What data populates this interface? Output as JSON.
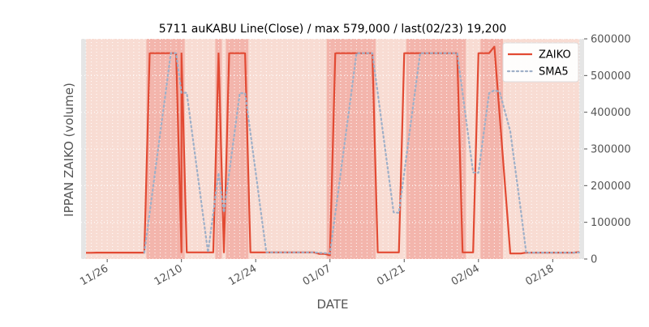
{
  "chart_data": {
    "type": "line",
    "title": "5711 auKABU Line(Close) / max 579,000 / last(02/23) 19,200",
    "xlabel": "DATE",
    "ylabel": "IPPAN ZAIKO (volume)",
    "y_ticks": [
      0,
      100000,
      200000,
      300000,
      400000,
      500000,
      600000
    ],
    "y_tick_labels": [
      "0",
      "100000",
      "200000",
      "300000",
      "400000",
      "500000",
      "600000"
    ],
    "ylim": [
      0,
      600000
    ],
    "x_ticks": [
      "11/26",
      "12/10",
      "12/24",
      "01/07",
      "01/21",
      "02/04",
      "02/18"
    ],
    "legend_position": "top-right",
    "grid": true,
    "colors": {
      "zaiko": "#E24A33",
      "sma5": "#9FB0C8",
      "background": "#F8DCD3",
      "band": "#F2AEA5",
      "panel_edge": "#E5E5E5"
    },
    "bands": [
      [
        "12/04",
        "12/09"
      ],
      [
        "12/10",
        "12/10"
      ],
      [
        "12/17",
        "12/17"
      ],
      [
        "12/19",
        "12/22"
      ],
      [
        "01/07",
        "01/15"
      ],
      [
        "01/22",
        "02/01"
      ],
      [
        "02/05",
        "02/08"
      ]
    ],
    "series": [
      {
        "name": "ZAIKO",
        "style": "solid",
        "points": [
          [
            "11/22",
            17000
          ],
          [
            "11/23",
            17000
          ],
          [
            "11/24",
            17500
          ],
          [
            "11/25",
            17500
          ],
          [
            "11/26",
            17500
          ],
          [
            "11/27",
            17500
          ],
          [
            "11/28",
            17500
          ],
          [
            "11/29",
            17500
          ],
          [
            "11/30",
            17500
          ],
          [
            "12/01",
            17500
          ],
          [
            "12/02",
            17500
          ],
          [
            "12/03",
            17500
          ],
          [
            "12/04",
            561000
          ],
          [
            "12/05",
            561000
          ],
          [
            "12/06",
            561000
          ],
          [
            "12/07",
            561000
          ],
          [
            "12/08",
            561000
          ],
          [
            "12/09",
            561000
          ],
          [
            "12/10",
            18000
          ],
          [
            "12/10",
            561000
          ],
          [
            "12/11",
            18000
          ],
          [
            "12/12",
            18000
          ],
          [
            "12/13",
            18000
          ],
          [
            "12/14",
            18000
          ],
          [
            "12/15",
            18000
          ],
          [
            "12/16",
            18000
          ],
          [
            "12/17",
            561000
          ],
          [
            "12/18",
            18000
          ],
          [
            "12/19",
            561000
          ],
          [
            "12/20",
            561000
          ],
          [
            "12/21",
            561000
          ],
          [
            "12/22",
            561000
          ],
          [
            "12/23",
            18000
          ],
          [
            "12/24",
            18000
          ],
          [
            "12/25",
            18000
          ],
          [
            "12/26",
            18000
          ],
          [
            "12/27",
            18000
          ],
          [
            "12/28",
            18000
          ],
          [
            "12/29",
            18000
          ],
          [
            "12/30",
            18000
          ],
          [
            "12/31",
            18000
          ],
          [
            "01/01",
            18000
          ],
          [
            "01/02",
            18000
          ],
          [
            "01/03",
            18000
          ],
          [
            "01/04",
            18000
          ],
          [
            "01/05",
            14000
          ],
          [
            "01/06",
            14000
          ],
          [
            "01/07",
            10000
          ],
          [
            "01/08",
            561000
          ],
          [
            "01/09",
            561000
          ],
          [
            "01/10",
            561000
          ],
          [
            "01/11",
            561000
          ],
          [
            "01/12",
            561000
          ],
          [
            "01/13",
            561000
          ],
          [
            "01/14",
            561000
          ],
          [
            "01/15",
            561000
          ],
          [
            "01/16",
            18000
          ],
          [
            "01/17",
            18000
          ],
          [
            "01/18",
            18000
          ],
          [
            "01/19",
            18000
          ],
          [
            "01/20",
            18000
          ],
          [
            "01/21",
            561000
          ],
          [
            "01/22",
            561000
          ],
          [
            "01/23",
            561000
          ],
          [
            "01/24",
            561000
          ],
          [
            "01/25",
            561000
          ],
          [
            "01/26",
            561000
          ],
          [
            "01/27",
            561000
          ],
          [
            "01/28",
            561000
          ],
          [
            "01/29",
            561000
          ],
          [
            "01/30",
            561000
          ],
          [
            "01/31",
            561000
          ],
          [
            "02/01",
            18000
          ],
          [
            "02/02",
            18000
          ],
          [
            "02/03",
            18000
          ],
          [
            "02/04",
            561000
          ],
          [
            "02/05",
            561000
          ],
          [
            "02/06",
            561000
          ],
          [
            "02/07",
            579000
          ],
          [
            "02/10",
            15000
          ],
          [
            "02/11",
            15000
          ],
          [
            "02/12",
            15000
          ],
          [
            "02/13",
            17500
          ],
          [
            "02/14",
            17500
          ],
          [
            "02/15",
            17500
          ],
          [
            "02/16",
            17500
          ],
          [
            "02/17",
            17500
          ],
          [
            "02/18",
            17500
          ],
          [
            "02/19",
            17500
          ],
          [
            "02/20",
            17500
          ],
          [
            "02/21",
            17500
          ],
          [
            "02/22",
            17500
          ],
          [
            "02/23",
            19200
          ]
        ]
      },
      {
        "name": "SMA5",
        "style": "dotted",
        "points": [
          [
            "12/03",
            17500
          ],
          [
            "12/04",
            126000
          ],
          [
            "12/05",
            234000
          ],
          [
            "12/06",
            343000
          ],
          [
            "12/07",
            452000
          ],
          [
            "12/08",
            561000
          ],
          [
            "12/09",
            561000
          ],
          [
            "12/10",
            453000
          ],
          [
            "12/11",
            453000
          ],
          [
            "12/12",
            344000
          ],
          [
            "12/13",
            236000
          ],
          [
            "12/14",
            127000
          ],
          [
            "12/15",
            18000
          ],
          [
            "12/16",
            126000
          ],
          [
            "12/17",
            235000
          ],
          [
            "12/18",
            127000
          ],
          [
            "12/19",
            235000
          ],
          [
            "12/20",
            344000
          ],
          [
            "12/21",
            452000
          ],
          [
            "12/22",
            452000
          ],
          [
            "12/23",
            344000
          ],
          [
            "12/24",
            236000
          ],
          [
            "12/25",
            127000
          ],
          [
            "12/26",
            18000
          ],
          [
            "12/27",
            18000
          ],
          [
            "12/28",
            18000
          ],
          [
            "12/29",
            18000
          ],
          [
            "12/30",
            18000
          ],
          [
            "12/31",
            18000
          ],
          [
            "01/01",
            18000
          ],
          [
            "01/02",
            18000
          ],
          [
            "01/03",
            18000
          ],
          [
            "01/04",
            18000
          ],
          [
            "01/05",
            17000
          ],
          [
            "01/06",
            16000
          ],
          [
            "01/07",
            15000
          ],
          [
            "01/08",
            124000
          ],
          [
            "01/09",
            232000
          ],
          [
            "01/10",
            341000
          ],
          [
            "01/11",
            450000
          ],
          [
            "01/12",
            561000
          ],
          [
            "01/13",
            561000
          ],
          [
            "01/14",
            561000
          ],
          [
            "01/15",
            561000
          ],
          [
            "01/16",
            453000
          ],
          [
            "01/17",
            344000
          ],
          [
            "01/18",
            236000
          ],
          [
            "01/19",
            127000
          ],
          [
            "01/20",
            126000
          ],
          [
            "01/21",
            235000
          ],
          [
            "01/22",
            344000
          ],
          [
            "01/23",
            452000
          ],
          [
            "01/24",
            561000
          ],
          [
            "01/25",
            561000
          ],
          [
            "01/26",
            561000
          ],
          [
            "01/27",
            561000
          ],
          [
            "01/28",
            561000
          ],
          [
            "01/29",
            561000
          ],
          [
            "01/30",
            561000
          ],
          [
            "01/31",
            561000
          ],
          [
            "02/01",
            453000
          ],
          [
            "02/02",
            344000
          ],
          [
            "02/03",
            236000
          ],
          [
            "02/04",
            235000
          ],
          [
            "02/05",
            344000
          ],
          [
            "02/06",
            452000
          ],
          [
            "02/07",
            460000
          ],
          [
            "02/08",
            456000
          ],
          [
            "02/10",
            348000
          ],
          [
            "02/11",
            240000
          ],
          [
            "02/12",
            131000
          ],
          [
            "02/13",
            17500
          ],
          [
            "02/14",
            17500
          ],
          [
            "02/15",
            17500
          ],
          [
            "02/16",
            17500
          ],
          [
            "02/17",
            17500
          ],
          [
            "02/18",
            17500
          ],
          [
            "02/19",
            17500
          ],
          [
            "02/20",
            17500
          ],
          [
            "02/21",
            17500
          ],
          [
            "02/22",
            17500
          ],
          [
            "02/23",
            17800
          ]
        ]
      }
    ]
  }
}
